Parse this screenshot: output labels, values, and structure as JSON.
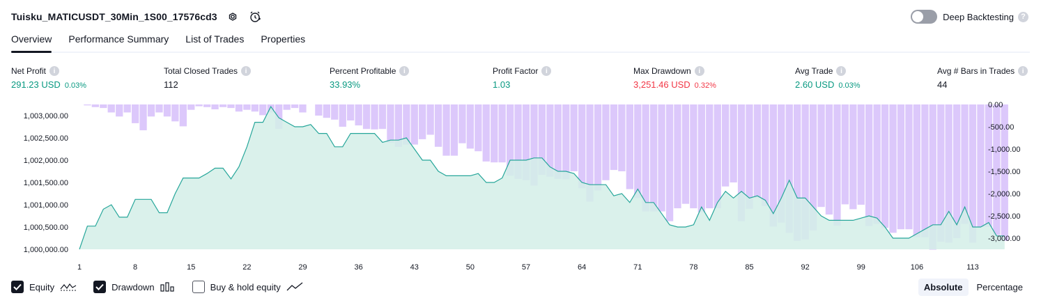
{
  "header": {
    "title": "Tuisku_MATICUSDT_30Min_1S00_17576cd3",
    "deep_backtesting_label": "Deep Backtesting",
    "help_glyph": "?"
  },
  "tabs": [
    {
      "label": "Overview",
      "active": true
    },
    {
      "label": "Performance Summary",
      "active": false
    },
    {
      "label": "List of Trades",
      "active": false
    },
    {
      "label": "Properties",
      "active": false
    }
  ],
  "metrics": {
    "net_profit": {
      "label": "Net Profit",
      "value": "291.23 USD",
      "pct": "0.03%"
    },
    "total_closed_trades": {
      "label": "Total Closed Trades",
      "value": "112"
    },
    "percent_profitable": {
      "label": "Percent Profitable",
      "value": "33.93%"
    },
    "profit_factor": {
      "label": "Profit Factor",
      "value": "1.03"
    },
    "max_drawdown": {
      "label": "Max Drawdown",
      "value": "3,251.46 USD",
      "pct": "0.32%"
    },
    "avg_trade": {
      "label": "Avg Trade",
      "value": "2.60 USD",
      "pct": "0.03%"
    },
    "avg_bars": {
      "label": "Avg # Bars in Trades",
      "value": "44"
    }
  },
  "legend": {
    "equity_label": "Equity",
    "drawdown_label": "Drawdown",
    "buyhold_label": "Buy & hold equity",
    "equity_checked": true,
    "drawdown_checked": true,
    "buyhold_checked": false
  },
  "mode": {
    "absolute": "Absolute",
    "percentage": "Percentage",
    "selected": "Absolute"
  },
  "colors": {
    "equity_line": "#26a69a",
    "equity_fill": "#d4efe8",
    "drawdown_bar": "#dcc8fb",
    "drawdown_bar_dark": "#c5b2f2",
    "profit_green": "#089981",
    "loss_red": "#f23645"
  },
  "chart_data": {
    "type": "line",
    "x_ticks": [
      1,
      8,
      15,
      22,
      29,
      36,
      43,
      50,
      57,
      64,
      71,
      78,
      85,
      92,
      99,
      106,
      113
    ],
    "y_left_ticks": [
      "1,000,000.00",
      "1,000,500.00",
      "1,001,000.00",
      "1,001,500.00",
      "1,002,000.00",
      "1,002,500.00",
      "1,003,000.00"
    ],
    "y_left_values": [
      1000000,
      1000500,
      1001000,
      1001500,
      1002000,
      1002500,
      1003000
    ],
    "y_right_ticks": [
      "0.00",
      "-500.00",
      "-1,000.00",
      "-1,500.00",
      "-2,000.00",
      "-2,500.00",
      "-3,000.00"
    ],
    "y_right_values": [
      0,
      -500,
      -1000,
      -1500,
      -2000,
      -2500,
      -3000
    ],
    "ylim_left": [
      1000000,
      1003250
    ],
    "ylim_right": [
      -3250,
      0
    ],
    "xlim": [
      1,
      113
    ],
    "series": [
      {
        "name": "Equity",
        "values": [
          1000000,
          1000520,
          1000520,
          1000900,
          1001000,
          1000720,
          1000720,
          1001120,
          1001120,
          1001120,
          1000820,
          1000820,
          1001250,
          1001600,
          1001600,
          1001600,
          1001700,
          1001820,
          1001820,
          1001580,
          1001850,
          1002300,
          1002850,
          1002850,
          1003200,
          1002950,
          1002850,
          1002750,
          1002750,
          1002800,
          1002600,
          1002600,
          1002300,
          1002300,
          1002600,
          1002600,
          1002600,
          1002600,
          1002400,
          1002450,
          1002450,
          1002500,
          1002250,
          1002000,
          1002000,
          1001750,
          1001650,
          1001650,
          1001650,
          1001650,
          1001700,
          1001500,
          1001500,
          1001600,
          1002000,
          1002000,
          1002000,
          1002050,
          1002050,
          1001850,
          1001750,
          1001750,
          1001700,
          1001500,
          1001450,
          1001450,
          1001450,
          1001200,
          1001250,
          1001050,
          1001350,
          1001050,
          1001050,
          1000800,
          1000550,
          1000500,
          1000500,
          1000550,
          1000950,
          1000650,
          1001050,
          1001300,
          1001150,
          1001300,
          1001150,
          1001200,
          1001100,
          1000800,
          1001150,
          1001550,
          1001150,
          1001150,
          1000950,
          1000750,
          1000650,
          1000650,
          1000650,
          1000650,
          1000700,
          1000750,
          1000700,
          1000500,
          1000250,
          1000250,
          1000250,
          1000350,
          1000450,
          1000550,
          1000550,
          1000850,
          1000550,
          1000950,
          1000500,
          1000500,
          1000600,
          1000300,
          1000300
        ]
      },
      {
        "name": "Drawdown",
        "values": [
          0,
          -20,
          -60,
          -80,
          -180,
          -270,
          -180,
          -420,
          -580,
          -270,
          -180,
          -270,
          -380,
          -490,
          -120,
          -40,
          -60,
          -110,
          -60,
          -80,
          -160,
          -120,
          -160,
          -240,
          -180,
          -550,
          -120,
          -80,
          -180,
          0,
          -250,
          -300,
          -340,
          -500,
          -360,
          -470,
          -550,
          -560,
          -550,
          -860,
          -950,
          -900,
          -900,
          -780,
          -680,
          -950,
          -1150,
          -1150,
          -870,
          -990,
          -1050,
          -1280,
          -1300,
          -1300,
          -1600,
          -1670,
          -1700,
          -1820,
          -1580,
          -1620,
          -1670,
          -1680,
          -1500,
          -1880,
          -2180,
          -1930,
          -1700,
          -1470,
          -1500,
          -1900,
          -2100,
          -2400,
          -2400,
          -2400,
          -2620,
          -2330,
          -2230,
          -2330,
          -2420,
          -2330,
          -2330,
          -1840,
          -1750,
          -2620,
          -2340,
          -2100,
          -2280,
          -2740,
          -2650,
          -2880,
          -3060,
          -3030,
          -2830,
          -2300,
          -2470,
          -2720,
          -2240,
          -2350,
          -2250,
          -2730,
          -2680,
          -2770,
          -2880,
          -2800,
          -2800,
          -2980,
          -2980,
          -3260,
          -3080,
          -3100,
          -3000,
          -2680,
          -3100,
          -2750,
          -2750,
          -2930,
          -3060
        ]
      }
    ]
  }
}
